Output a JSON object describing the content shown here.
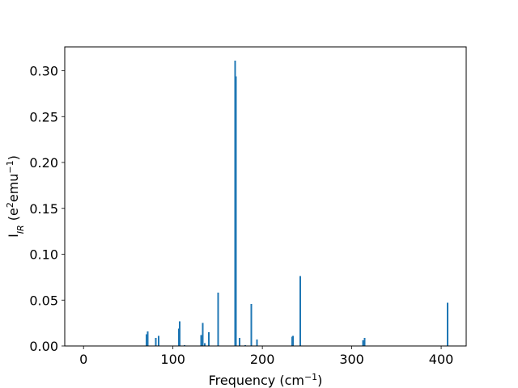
{
  "chart_data": {
    "type": "bar",
    "xlabel": "Frequency (cm",
    "xlabel_sup": "−1",
    "xlabel_close": ")",
    "ylabel_main": "I",
    "ylabel_sub": "IR",
    "ylabel_rest_open": " (e",
    "ylabel_sup1": "2",
    "ylabel_mid": "emu",
    "ylabel_sup2": "−1",
    "ylabel_close": ")",
    "xlim": [
      -21,
      428
    ],
    "ylim": [
      0,
      0.326
    ],
    "xticks": [
      0,
      100,
      200,
      300,
      400
    ],
    "xtick_labels": [
      "0",
      "100",
      "200",
      "300",
      "400"
    ],
    "yticks": [
      0.0,
      0.05,
      0.1,
      0.15,
      0.2,
      0.25,
      0.3
    ],
    "ytick_labels": [
      "0.00",
      "0.05",
      "0.10",
      "0.15",
      "0.20",
      "0.25",
      "0.30"
    ],
    "bar_color": "#1f77b4",
    "grid": false,
    "bars": [
      {
        "x": 70.2,
        "y": 0.013
      },
      {
        "x": 72.0,
        "y": 0.016
      },
      {
        "x": 81.0,
        "y": 0.009
      },
      {
        "x": 84.0,
        "y": 0.011
      },
      {
        "x": 106.5,
        "y": 0.019
      },
      {
        "x": 107.5,
        "y": 0.027
      },
      {
        "x": 113.0,
        "y": 0.001
      },
      {
        "x": 131.5,
        "y": 0.012
      },
      {
        "x": 133.5,
        "y": 0.025
      },
      {
        "x": 135.5,
        "y": 0.003
      },
      {
        "x": 140.0,
        "y": 0.015
      },
      {
        "x": 150.5,
        "y": 0.058
      },
      {
        "x": 169.5,
        "y": 0.311
      },
      {
        "x": 170.5,
        "y": 0.294
      },
      {
        "x": 174.5,
        "y": 0.009
      },
      {
        "x": 181.0,
        "y": 0.001
      },
      {
        "x": 187.5,
        "y": 0.046
      },
      {
        "x": 194.0,
        "y": 0.007
      },
      {
        "x": 233.5,
        "y": 0.01
      },
      {
        "x": 234.5,
        "y": 0.011
      },
      {
        "x": 242.5,
        "y": 0.076
      },
      {
        "x": 312.5,
        "y": 0.006
      },
      {
        "x": 314.5,
        "y": 0.009
      },
      {
        "x": 407.0,
        "y": 0.047
      }
    ]
  }
}
